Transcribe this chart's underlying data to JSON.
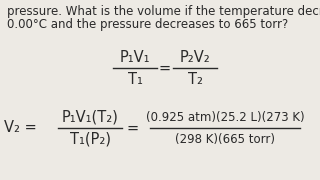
{
  "bg_color": "#edeae4",
  "text_color": "#2a2a2a",
  "line1": "pressure. What is the volume if the temperature decreases to",
  "line2": "0.00°C and the pressure decreases to 665 torr?",
  "formula_top_left": "P₁V₁",
  "formula_bot_left": "T₁",
  "equals1": "=",
  "formula_top_right": "P₂V₂",
  "formula_bot_right": "T₂",
  "v2_label": "V₂ =",
  "frac2_top": "P₁V₁(T₂)",
  "frac2_bot": "T₁(P₂)",
  "equals2": "=",
  "num_top": "(0.925 atm)(25.2 L)(273 K)",
  "num_bot": "(298 K)(665 torr)",
  "fs_body": 8.5,
  "fs_formula": 10.5
}
